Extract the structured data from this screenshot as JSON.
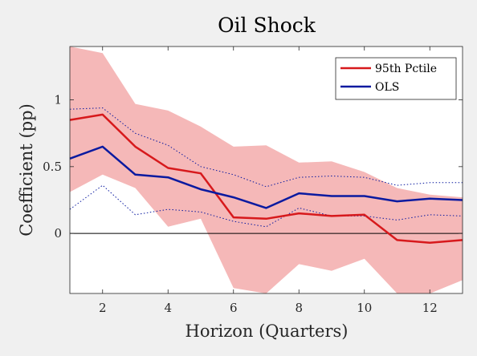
{
  "chart_data": {
    "type": "line",
    "title": "Oil Shock",
    "xlabel": "Horizon (Quarters)",
    "ylabel": "Coefficient (pp)",
    "x": [
      1,
      2,
      3,
      4,
      5,
      6,
      7,
      8,
      9,
      10,
      11,
      12,
      13
    ],
    "xlim": [
      1,
      13
    ],
    "ylim": [
      -0.45,
      1.4
    ],
    "xticks": [
      "2",
      "4",
      "6",
      "8",
      "10",
      "12"
    ],
    "yticks": [
      "0",
      "0.5",
      "1"
    ],
    "grid": false,
    "legend_position": "top-right",
    "zero_line": 0,
    "series": [
      {
        "name": "95th Pctile",
        "color": "#d7191c",
        "values": [
          0.85,
          0.89,
          0.65,
          0.49,
          0.45,
          0.12,
          0.11,
          0.15,
          0.13,
          0.14,
          -0.05,
          -0.07,
          -0.05
        ],
        "band_lower": [
          0.31,
          0.44,
          0.34,
          0.05,
          0.11,
          -0.41,
          -0.45,
          -0.23,
          -0.28,
          -0.19,
          -0.45,
          -0.45,
          -0.35
        ],
        "band_upper": [
          1.4,
          1.35,
          0.97,
          0.92,
          0.8,
          0.65,
          0.66,
          0.53,
          0.54,
          0.46,
          0.34,
          0.29,
          0.27
        ],
        "band_color": "#f5b8b8"
      },
      {
        "name": "OLS",
        "color": "#0a1aa0",
        "values": [
          0.56,
          0.65,
          0.44,
          0.42,
          0.33,
          0.27,
          0.19,
          0.3,
          0.28,
          0.28,
          0.24,
          0.26,
          0.25
        ],
        "ci_lower": [
          0.18,
          0.36,
          0.14,
          0.18,
          0.16,
          0.09,
          0.05,
          0.19,
          0.13,
          0.13,
          0.1,
          0.14,
          0.13
        ],
        "ci_upper": [
          0.93,
          0.94,
          0.75,
          0.66,
          0.5,
          0.44,
          0.35,
          0.42,
          0.43,
          0.42,
          0.36,
          0.38,
          0.38
        ]
      }
    ]
  }
}
